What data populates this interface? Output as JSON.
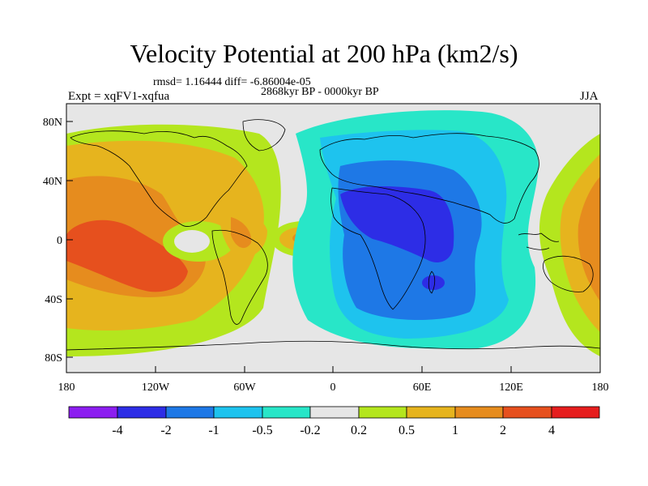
{
  "title": "Velocity Potential at 200 hPa (km2/s)",
  "stats": "rmsd= 1.16444  diff= -6.86004e-05",
  "period": "2868kyr BP - 0000kyr BP",
  "experiment": "Expt = xqFV1-xqfua",
  "season": "JJA",
  "axes": {
    "lat_labels": [
      "80N",
      "40N",
      "0",
      "40S",
      "80S"
    ],
    "lon_labels": [
      "180",
      "120W",
      "60W",
      "0",
      "60E",
      "120E",
      "180"
    ]
  },
  "legend": {
    "labels": [
      "-4",
      "-2",
      "-1",
      "-0.5",
      "-0.2",
      "0.2",
      "0.5",
      "1",
      "2",
      "4"
    ],
    "colors": [
      "#8c1ef0",
      "#2d2de6",
      "#1e78e6",
      "#1ec3ee",
      "#28e6c8",
      "#e6e6e6",
      "#b4e61e",
      "#e6b41e",
      "#e68c1e",
      "#e6501e",
      "#e61e1e"
    ]
  },
  "field_colors": {
    "neutral": "#e6e6e6",
    "pos_02": "#b4e61e",
    "pos_05": "#e6b41e",
    "pos_1": "#e68c1e",
    "pos_2": "#e6501e",
    "neg_02": "#28e6c8",
    "neg_05": "#1ec3ee",
    "neg_1": "#1e78e6",
    "neg_2": "#2d2de6"
  }
}
